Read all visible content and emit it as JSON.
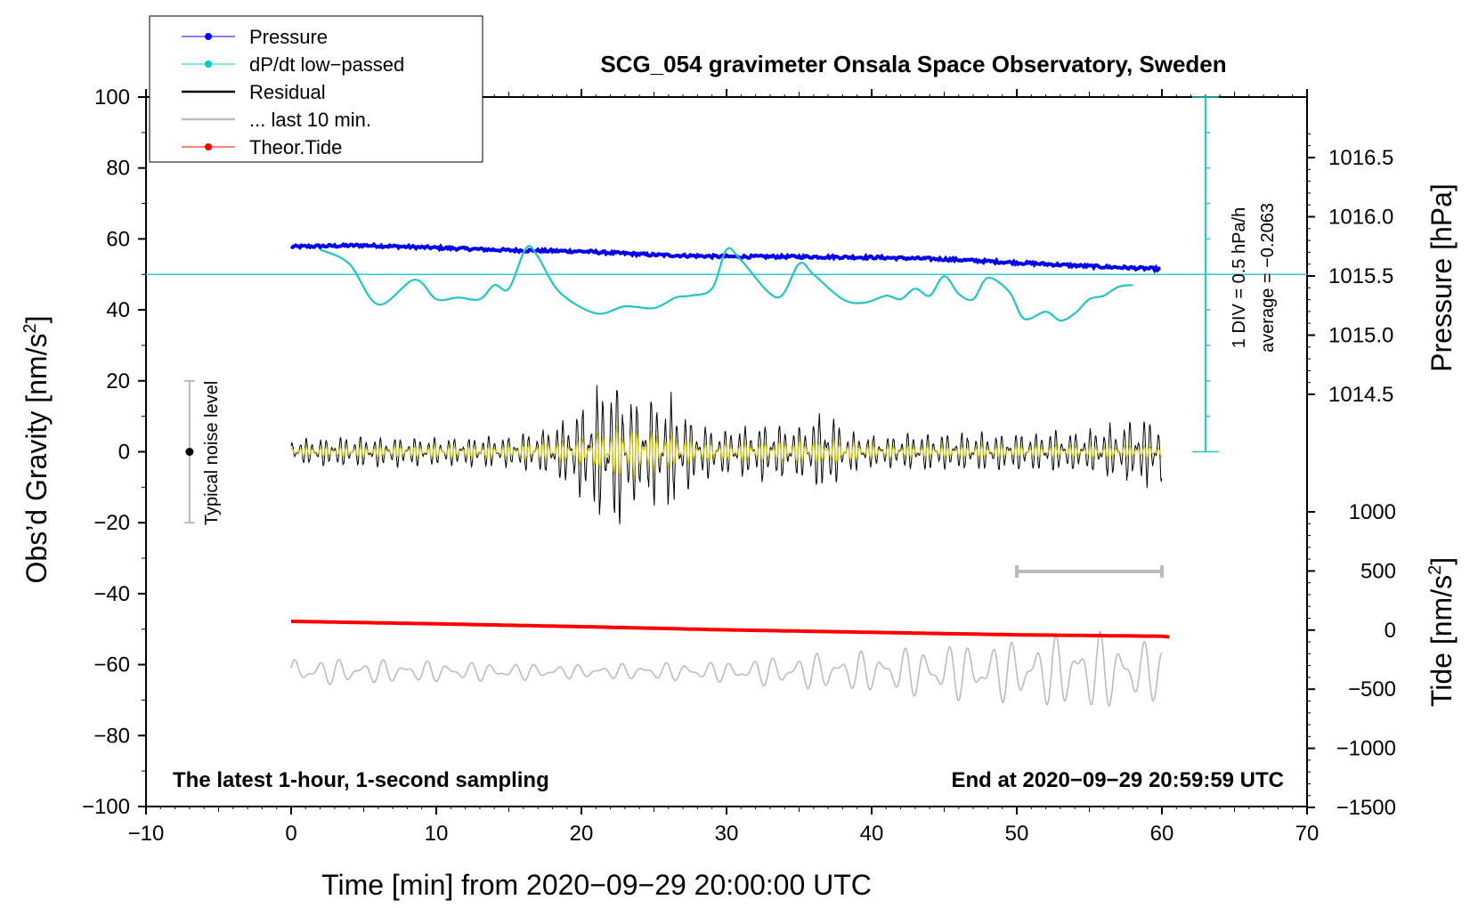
{
  "chart_data": {
    "type": "line",
    "title": "SCG_054 gravimeter Onsala Space Observatory, Sweden",
    "xlabel": "Time [min] from 2020−09−29 20:00:00 UTC",
    "ylabel_left": "Obs’d Gravity [nm/s",
    "ylabel_left_sup": "2",
    "ylabel_left_end": "]",
    "ylabel_pressure": "Pressure [hPa]",
    "ylabel_tide": "Tide [nm/s",
    "ylabel_tide_sup": "2",
    "ylabel_tide_end": "]",
    "xlim": [
      -10,
      70
    ],
    "ylim": [
      -100,
      100
    ],
    "x_ticks": [
      "−10",
      "0",
      "10",
      "20",
      "30",
      "40",
      "50",
      "60",
      "70"
    ],
    "x_tick_values": [
      -10,
      0,
      10,
      20,
      30,
      40,
      50,
      60,
      70
    ],
    "y_ticks": [
      "100",
      "80",
      "60",
      "40",
      "20",
      "0",
      "−20",
      "−40",
      "−60",
      "−80",
      "−100"
    ],
    "y_tick_values": [
      100,
      80,
      60,
      40,
      20,
      0,
      -20,
      -40,
      -60,
      -80,
      -100
    ],
    "pressure_ticks": [
      "1016.5",
      "1016.0",
      "1015.5",
      "1015.0",
      "1014.5"
    ],
    "pressure_tick_values": [
      1016.5,
      1016.0,
      1015.5,
      1015.0,
      1014.5
    ],
    "tide_ticks": [
      "1000",
      "500",
      "0",
      "−500",
      "−1000",
      "−1500"
    ],
    "tide_tick_values": [
      1000,
      500,
      0,
      -500,
      -1000,
      -1500
    ],
    "legend": [
      {
        "label": "Pressure",
        "color": "#0000ff",
        "marker": true
      },
      {
        "label": "dP/dt low−passed",
        "color": "#00c8c8",
        "marker": true
      },
      {
        "label": "Residual",
        "color": "#000000",
        "marker": false
      },
      {
        "label": "... last 10 min.",
        "color": "#bbbbbb",
        "marker": false
      },
      {
        "label": "Theor.Tide",
        "color": "#ff0000",
        "marker": true
      }
    ],
    "dpdt_scale_label": "1 DIV = 0.5 hPa/h",
    "dpdt_average_label": "average = −0.2063",
    "noise_label": "Typical noise level",
    "noise_range": [
      -20,
      20
    ],
    "note_left": "The latest 1-hour, 1-second sampling",
    "note_right": "End at 2020−09−29 20:59:59 UTC",
    "series": [
      {
        "name": "Pressure",
        "color": "#0000ff",
        "x": [
          0,
          5,
          10,
          15,
          20,
          25,
          30,
          35,
          40,
          45,
          50,
          55,
          60
        ],
        "y": [
          57.8,
          58.2,
          57.5,
          56.8,
          56.5,
          55.5,
          55.0,
          55.0,
          54.8,
          54.3,
          53.3,
          52.3,
          51.5
        ]
      },
      {
        "name": "dP/dt low−passed",
        "color": "#00c8c8",
        "baseline_y": 50,
        "x": [
          2,
          4,
          6,
          8.5,
          10,
          11.5,
          13,
          14,
          15,
          16.2,
          17,
          18.5,
          21,
          23,
          25,
          26.5,
          27.5,
          29,
          30,
          31,
          33.5,
          35,
          36,
          38,
          39.5,
          41,
          42,
          43,
          44,
          45,
          46,
          47,
          48,
          49.5,
          50.5,
          52,
          53,
          54,
          55,
          56,
          57,
          58
        ],
        "y": [
          57,
          53,
          41.5,
          48.5,
          43,
          43.5,
          43,
          47,
          46,
          57.5,
          55,
          45,
          39,
          41,
          40.5,
          43.5,
          44,
          46,
          57,
          54,
          43.5,
          53,
          50,
          43,
          42,
          44,
          43,
          46,
          44,
          49.5,
          44.5,
          43,
          49,
          45,
          37.5,
          39.5,
          37,
          39,
          43,
          44,
          46.5,
          47
        ]
      },
      {
        "name": "Residual",
        "color": "#000000",
        "x_start": 0,
        "x_end": 60,
        "envelope_x": [
          0,
          5,
          10,
          15,
          18,
          20,
          22,
          22.7,
          24,
          26,
          28,
          30,
          33,
          35,
          37,
          38,
          40,
          45,
          50,
          55,
          58,
          60
        ],
        "envelope_amp": [
          4,
          5,
          4.5,
          5,
          8,
          15,
          24,
          26,
          15,
          18,
          9,
          7,
          10,
          8,
          15,
          7,
          5,
          6,
          6,
          7,
          10,
          11
        ]
      },
      {
        "name": "Residual smoothed",
        "color": "#d2c814",
        "x_start": 0,
        "x_end": 60,
        "envelope_x": [
          0,
          10,
          15,
          20,
          22.7,
          25,
          26,
          28,
          32,
          37,
          40,
          50,
          60
        ],
        "envelope_amp": [
          1.5,
          2,
          2,
          4,
          9,
          6,
          6,
          3,
          3,
          4,
          2,
          2,
          2
        ]
      },
      {
        "name": "... last 10 min.",
        "color": "#bbbbbb",
        "center_y": -62,
        "x_start": 0,
        "x_end": 60,
        "envelope_x": [
          0,
          10,
          20,
          30,
          35,
          40,
          45,
          50,
          55,
          60
        ],
        "envelope_amp": [
          4,
          3,
          2,
          3,
          5,
          6,
          8,
          9,
          12,
          8
        ]
      },
      {
        "name": "Theor.Tide",
        "color": "#ff0000",
        "x": [
          0,
          10,
          20,
          30,
          40,
          50,
          60,
          60.5
        ],
        "y": [
          -47.8,
          -48.5,
          -49.3,
          -50.2,
          -50.9,
          -51.6,
          -52.0,
          -52.2
        ]
      }
    ]
  }
}
